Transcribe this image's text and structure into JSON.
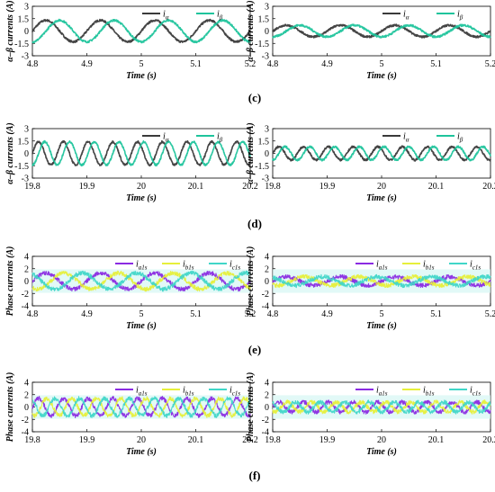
{
  "rows": [
    {
      "label": "",
      "xlabel": "Time (s)",
      "ylabel": "α–β currents (A)",
      "kind": "ab",
      "xticks": [
        "4.8",
        "4.9",
        "5",
        "5.1",
        "5.2"
      ],
      "yticks": [
        "-3",
        "-1.5",
        "0",
        "1.5",
        "3"
      ]
    },
    {
      "label": "(c)",
      "xlabel": "Time (s)",
      "ylabel": "α–β currents (A)",
      "kind": "ab",
      "xticks": [
        "19.8",
        "19.9",
        "20",
        "20.1",
        "20.2"
      ],
      "yticks": [
        "-3",
        "-1.5",
        "0",
        "1.5",
        "3"
      ]
    },
    {
      "label": "(d)",
      "xlabel": "Time (s)",
      "ylabel": "Phase currents (A)",
      "kind": "phase",
      "xticks": [
        "4.8",
        "4.9",
        "5",
        "5.1",
        "5.2"
      ],
      "yticks": [
        "-4",
        "-2",
        "0",
        "2",
        "4"
      ]
    },
    {
      "label": "(e)",
      "xlabel": "Time (s)",
      "ylabel": "Phase currents (A)",
      "kind": "phase",
      "xticks": [
        "19.8",
        "19.9",
        "20",
        "20.1",
        "20.2"
      ],
      "yticks": [
        "-4",
        "-2",
        "0",
        "2",
        "4"
      ]
    }
  ],
  "bottom_label": "(f)",
  "legend_ab": [
    {
      "main": "i",
      "sub": "α",
      "color": "#3a3a3a"
    },
    {
      "main": "i",
      "sub": "β",
      "color": "#1fc49c"
    }
  ],
  "legend_phase": [
    {
      "main": "i",
      "sub": "a1s",
      "color": "#8a2be2"
    },
    {
      "main": "i",
      "sub": "b1s",
      "color": "#e6ef3a"
    },
    {
      "main": "i",
      "sub": "c1s",
      "color": "#40d6c8"
    }
  ],
  "chart_data": [
    {
      "type": "line",
      "panel": "row1-left",
      "xlabel": "Time (s)",
      "ylabel": "α–β currents (A)",
      "xlim": [
        4.8,
        5.2
      ],
      "ylim": [
        -3,
        3
      ],
      "series": [
        {
          "name": "iα",
          "amplitude": 1.3,
          "frequency_hz": 10,
          "phase_deg": 0,
          "color": "#3a3a3a"
        },
        {
          "name": "iβ",
          "amplitude": 1.3,
          "frequency_hz": 10,
          "phase_deg": -90,
          "color": "#1fc49c"
        }
      ]
    },
    {
      "type": "line",
      "panel": "row1-right",
      "xlabel": "Time (s)",
      "ylabel": "α–β currents (A)",
      "xlim": [
        4.8,
        5.2
      ],
      "ylim": [
        -3,
        3
      ],
      "series": [
        {
          "name": "iα",
          "amplitude": 0.7,
          "frequency_hz": 10,
          "phase_deg": 0,
          "color": "#3a3a3a"
        },
        {
          "name": "iβ",
          "amplitude": 0.7,
          "frequency_hz": 10,
          "phase_deg": -90,
          "color": "#1fc49c"
        }
      ]
    },
    {
      "type": "line",
      "panel": "row2-left",
      "xlabel": "Time (s)",
      "ylabel": "α–β currents (A)",
      "xlim": [
        19.8,
        20.2
      ],
      "ylim": [
        -3,
        3
      ],
      "series": [
        {
          "name": "iα",
          "amplitude": 1.4,
          "frequency_hz": 22,
          "phase_deg": 0,
          "color": "#3a3a3a"
        },
        {
          "name": "iβ",
          "amplitude": 1.4,
          "frequency_hz": 22,
          "phase_deg": -90,
          "color": "#1fc49c"
        }
      ]
    },
    {
      "type": "line",
      "panel": "row2-right",
      "xlabel": "Time (s)",
      "ylabel": "α–β currents (A)",
      "xlim": [
        19.8,
        20.2
      ],
      "ylim": [
        -3,
        3
      ],
      "series": [
        {
          "name": "iα",
          "amplitude": 0.8,
          "frequency_hz": 22,
          "phase_deg": 0,
          "color": "#3a3a3a"
        },
        {
          "name": "iβ",
          "amplitude": 0.8,
          "frequency_hz": 22,
          "phase_deg": -90,
          "color": "#1fc49c"
        }
      ]
    },
    {
      "type": "line",
      "panel": "row3-left",
      "xlabel": "Time (s)",
      "ylabel": "Phase currents (A)",
      "xlim": [
        4.8,
        5.2
      ],
      "ylim": [
        -4,
        4
      ],
      "series": [
        {
          "name": "ia1s",
          "amplitude": 1.3,
          "frequency_hz": 10,
          "phase_deg": 0,
          "color": "#8a2be2"
        },
        {
          "name": "ib1s",
          "amplitude": 1.3,
          "frequency_hz": 10,
          "phase_deg": -120,
          "color": "#e6ef3a"
        },
        {
          "name": "ic1s",
          "amplitude": 1.3,
          "frequency_hz": 10,
          "phase_deg": 120,
          "color": "#40d6c8"
        }
      ]
    },
    {
      "type": "line",
      "panel": "row3-right",
      "xlabel": "Time (s)",
      "ylabel": "Phase currents (A)",
      "xlim": [
        4.8,
        5.2
      ],
      "ylim": [
        -4,
        4
      ],
      "series": [
        {
          "name": "ia1s",
          "amplitude": 0.7,
          "frequency_hz": 10,
          "phase_deg": 0,
          "color": "#8a2be2"
        },
        {
          "name": "ib1s",
          "amplitude": 0.7,
          "frequency_hz": 10,
          "phase_deg": -120,
          "color": "#e6ef3a"
        },
        {
          "name": "ic1s",
          "amplitude": 0.7,
          "frequency_hz": 10,
          "phase_deg": 120,
          "color": "#40d6c8"
        }
      ]
    },
    {
      "type": "line",
      "panel": "row4-left",
      "xlabel": "Time (s)",
      "ylabel": "Phase currents (A)",
      "xlim": [
        19.8,
        20.2
      ],
      "ylim": [
        -4,
        4
      ],
      "series": [
        {
          "name": "ia1s",
          "amplitude": 1.4,
          "frequency_hz": 22,
          "phase_deg": 0,
          "color": "#8a2be2"
        },
        {
          "name": "ib1s",
          "amplitude": 1.4,
          "frequency_hz": 22,
          "phase_deg": -120,
          "color": "#e6ef3a"
        },
        {
          "name": "ic1s",
          "amplitude": 1.4,
          "frequency_hz": 22,
          "phase_deg": 120,
          "color": "#40d6c8"
        }
      ]
    },
    {
      "type": "line",
      "panel": "row4-right",
      "xlabel": "Time (s)",
      "ylabel": "Phase currents (A)",
      "xlim": [
        19.8,
        20.2
      ],
      "ylim": [
        -4,
        4
      ],
      "series": [
        {
          "name": "ia1s",
          "amplitude": 0.8,
          "frequency_hz": 22,
          "phase_deg": 0,
          "color": "#8a2be2"
        },
        {
          "name": "ib1s",
          "amplitude": 0.8,
          "frequency_hz": 22,
          "phase_deg": -120,
          "color": "#e6ef3a"
        },
        {
          "name": "ic1s",
          "amplitude": 0.8,
          "frequency_hz": 22,
          "phase_deg": 120,
          "color": "#40d6c8"
        }
      ]
    }
  ]
}
